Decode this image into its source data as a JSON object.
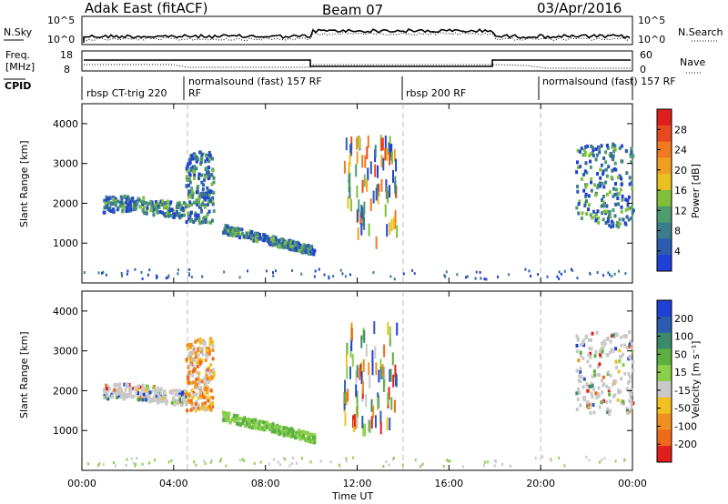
{
  "header": {
    "radar_title": "Adak East (fitACF)",
    "beam_title": "Beam 07",
    "date": "03/Apr/2016"
  },
  "side_labels": {
    "nsky": "N.Sky",
    "nsearch": "N.Search",
    "freq_line1": "Freq.",
    "freq_unit": "[MHz]",
    "nave": "Nave",
    "cpid": "CPID"
  },
  "noise_axis_ticks": [
    "10^5",
    "10^0"
  ],
  "freq_axis_ticks": [
    "18",
    "8"
  ],
  "nave_axis_ticks": [
    "60",
    "0"
  ],
  "cpid_segments": [
    {
      "label": "rbsp CT-trig 220",
      "start_h": 0.0,
      "end_h": 4.6
    },
    {
      "label": "normalsound (fast) 157 RF",
      "start_h": 4.6,
      "end_h": 14.0
    },
    {
      "label": "rbsp 200 RF",
      "start_h": 14.0,
      "end_h": 20.0
    },
    {
      "label": "normalsound (fast) 157 RF",
      "start_h": 20.0,
      "end_h": 24.0
    }
  ],
  "y_axis_label": "Slant Range [km]",
  "x_axis_label": "Time UT",
  "x_ticks": [
    "00:00",
    "04:00",
    "08:00",
    "12:00",
    "16:00",
    "20:00",
    "00:00"
  ],
  "y_ticks": [
    "1000",
    "2000",
    "3000",
    "4000"
  ],
  "power_colorbar": {
    "label": "Power [dB]",
    "ticks": [
      "4",
      "8",
      "12",
      "16",
      "20",
      "24",
      "28"
    ],
    "colors": [
      "#1f3fd6",
      "#2a5db0",
      "#3b7d8a",
      "#4f9d6e",
      "#7fbf3a",
      "#e8c020",
      "#f0a020",
      "#f07a20",
      "#e84a20",
      "#e01e1e"
    ]
  },
  "velocity_colorbar": {
    "label": "Velocity [m s⁻¹]",
    "ticks": [
      "200",
      "100",
      "50",
      "15",
      "-15",
      "-50",
      "-100",
      "-200"
    ],
    "colors": [
      "#1f3fd6",
      "#2a5db0",
      "#3b8a6a",
      "#5cb040",
      "#8bd04a",
      "#c8c8c8",
      "#f2c020",
      "#f09020",
      "#ee6a1a",
      "#e01e1e"
    ]
  },
  "chart_data": {
    "type": "heatmap",
    "x_range_hours": [
      0,
      24
    ],
    "y_range_km": [
      0,
      4500
    ],
    "panels": [
      "Power",
      "Velocity"
    ],
    "scatter_regions": [
      {
        "t0": 0.9,
        "t1": 4.5,
        "r0": 1650,
        "r1": 2200,
        "power": "low-mid",
        "velocity": "near 0 (grey)"
      },
      {
        "t0": 4.5,
        "t1": 5.7,
        "r0": 1500,
        "r1": 3300,
        "power": "low",
        "velocity": "mixed, orange/grey"
      },
      {
        "t0": 6.1,
        "t1": 10.1,
        "r0": 700,
        "r1": 1400,
        "power": "low-mid",
        "velocity": "+15 to +50 (green)"
      },
      {
        "t0": 11.4,
        "t1": 13.7,
        "r0": 1000,
        "r1": 3600,
        "power": "mid-high",
        "velocity": "mixed"
      },
      {
        "t0": 21.5,
        "t1": 24.0,
        "r0": 1400,
        "r1": 3500,
        "power": "low-mid",
        "velocity": "near 0 (grey)"
      }
    ]
  }
}
